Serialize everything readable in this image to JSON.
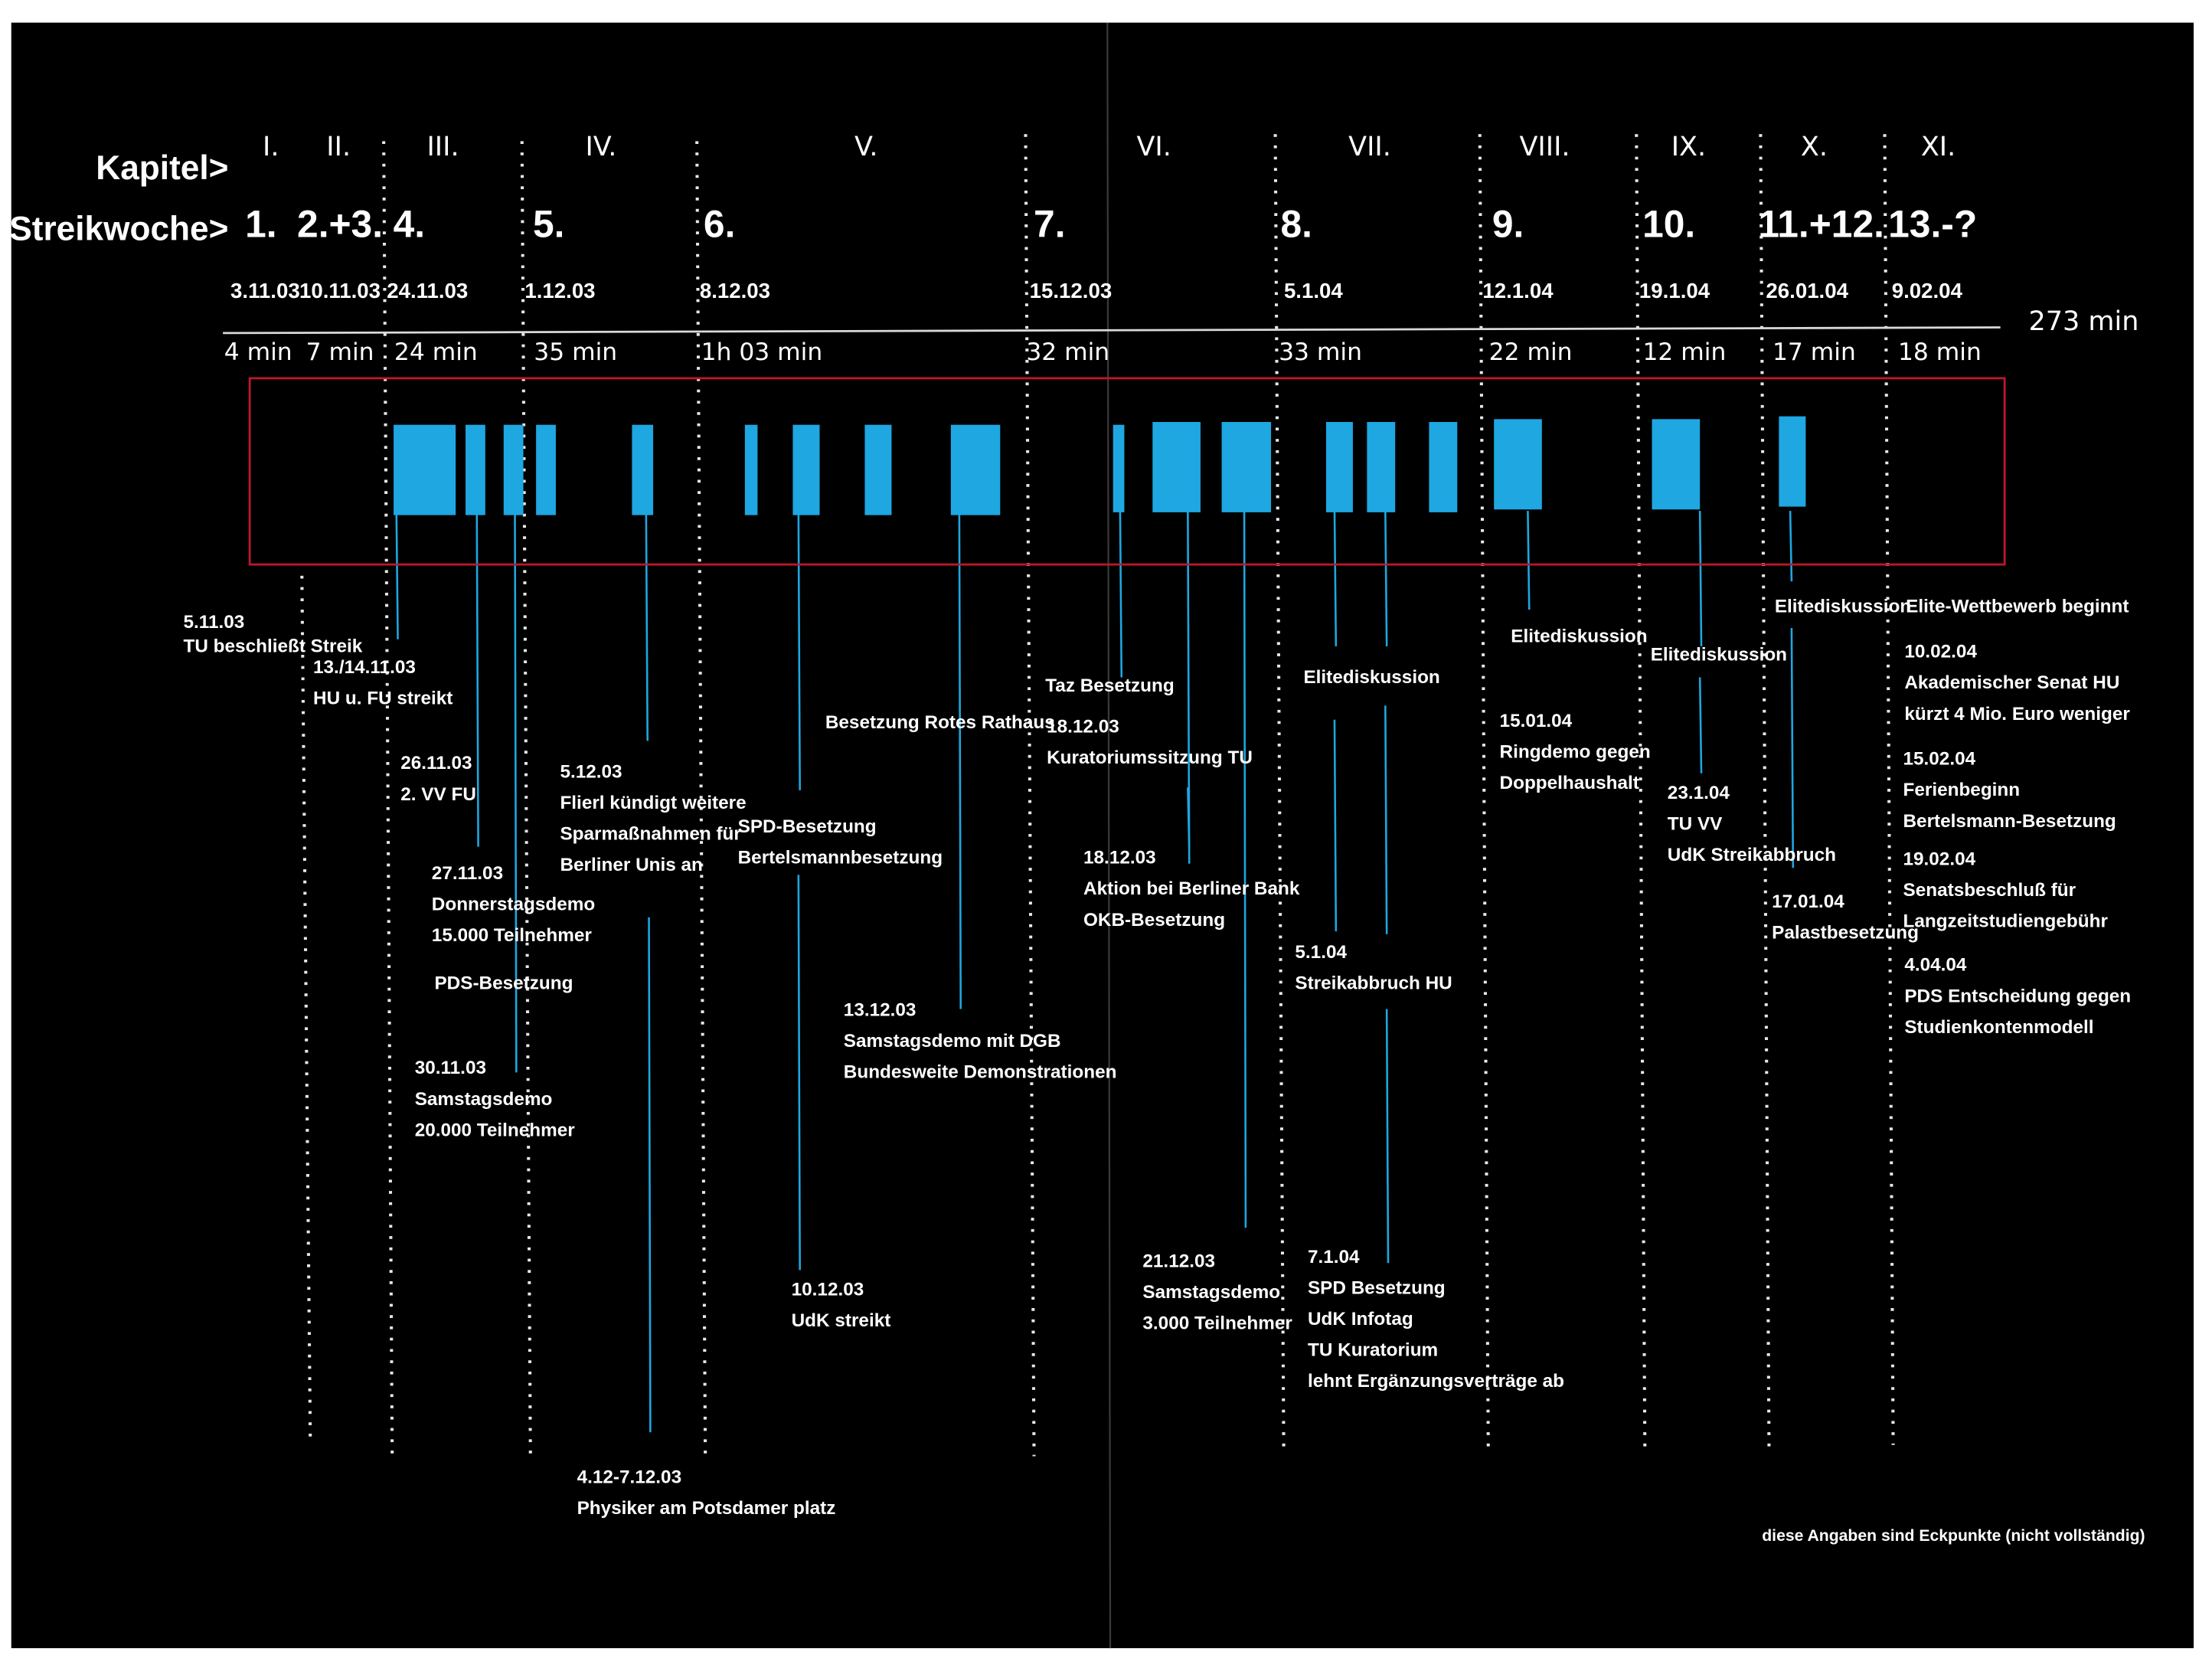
{
  "header": {
    "kapitel_label": "Kapitel>",
    "woche_label": "Streikwoche>",
    "total_duration": "273 min",
    "footnote": "diese Angaben sind Eckpunkte (nicht vollständig)"
  },
  "columns": [
    {
      "chapter": "I.",
      "week": "1.",
      "date": "3.11.03",
      "duration": "4 min"
    },
    {
      "chapter": "II.",
      "week": "2.+3.",
      "date": "10.11.03",
      "duration": "7 min"
    },
    {
      "chapter": "III.",
      "week": "4.",
      "date": "24.11.03",
      "duration": "24 min"
    },
    {
      "chapter": "IV.",
      "week": "5.",
      "date": "1.12.03",
      "duration": "35 min"
    },
    {
      "chapter": "V.",
      "week": "6.",
      "date": "8.12.03",
      "duration": "1h 03 min"
    },
    {
      "chapter": "VI.",
      "week": "7.",
      "date": "15.12.03",
      "duration": "32 min"
    },
    {
      "chapter": "VII.",
      "week": "8.",
      "date": "5.1.04",
      "duration": "33 min"
    },
    {
      "chapter": "VIII.",
      "week": "9.",
      "date": "12.1.04",
      "duration": "22 min"
    },
    {
      "chapter": "IX.",
      "week": "10.",
      "date": "19.1.04",
      "duration": "12 min"
    },
    {
      "chapter": "X.",
      "week": "11.+12.",
      "date": "26.01.04",
      "duration": "17 min"
    },
    {
      "chapter": "XI.",
      "week": "13.-?",
      "date": "9.02.04",
      "duration": "18 min"
    }
  ],
  "events": [
    {
      "lines": [
        "5.11.03",
        "TU beschließt Streik"
      ]
    },
    {
      "lines": [
        "13./14.11.03",
        "HU u. FU streikt"
      ]
    },
    {
      "lines": [
        "26.11.03",
        "2. VV FU"
      ]
    },
    {
      "lines": [
        "27.11.03",
        "Donnerstagsdemo",
        "15.000 Teilnehmer"
      ]
    },
    {
      "lines": [
        "PDS-Besetzung"
      ]
    },
    {
      "lines": [
        "30.11.03",
        "Samstagsdemo",
        "20.000 Teilnehmer"
      ]
    },
    {
      "lines": [
        "5.12.03",
        "Flierl kündigt weitere",
        "Sparmaßnahmen für",
        "Berliner Unis an"
      ]
    },
    {
      "lines": [
        "4.12-7.12.03",
        "Physiker am Potsdamer platz"
      ]
    },
    {
      "lines": [
        "Besetzung Rotes Rathaus"
      ]
    },
    {
      "lines": [
        "SPD-Besetzung",
        "Bertelsmannbesetzung"
      ]
    },
    {
      "lines": [
        "10.12.03",
        "UdK streikt"
      ]
    },
    {
      "lines": [
        "13.12.03",
        "Samstagsdemo mit DGB",
        "Bundesweite Demonstrationen"
      ]
    },
    {
      "lines": [
        "Taz Besetzung"
      ]
    },
    {
      "lines": [
        "18.12.03",
        "Kuratoriumssitzung TU"
      ]
    },
    {
      "lines": [
        "18.12.03",
        "Aktion bei Berliner Bank",
        "OKB-Besetzung"
      ]
    },
    {
      "lines": [
        "21.12.03",
        "Samstagsdemo",
        "3.000 Teilnehmer"
      ]
    },
    {
      "lines": [
        "Elitediskussion"
      ]
    },
    {
      "lines": [
        "5.1.04",
        "Streikabbruch HU"
      ]
    },
    {
      "lines": [
        "7.1.04",
        "SPD Besetzung",
        "UdK Infotag",
        "TU Kuratorium",
        "lehnt Ergänzungsverträge ab"
      ]
    },
    {
      "lines": [
        "Elitediskussion"
      ]
    },
    {
      "lines": [
        "15.01.04",
        "Ringdemo gegen",
        "Doppelhaushalt"
      ]
    },
    {
      "lines": [
        "Elitediskussion"
      ]
    },
    {
      "lines": [
        "23.1.04",
        "TU VV",
        "UdK Streikabbruch"
      ]
    },
    {
      "lines": [
        "Elitediskussion"
      ]
    },
    {
      "lines": [
        "17.01.04",
        "Palastbesetzung"
      ]
    },
    {
      "lines": [
        "Elite-Wettbewerb beginnt"
      ]
    },
    {
      "lines": [
        "10.02.04",
        "Akademischer Senat HU",
        "kürzt 4 Mio. Euro weniger"
      ]
    },
    {
      "lines": [
        "15.02.04",
        "Ferienbeginn",
        "Bertelsmann-Besetzung"
      ]
    },
    {
      "lines": [
        "19.02.04",
        "Senatsbeschluß für",
        "Langzeitstudiengebühr"
      ]
    },
    {
      "lines": [
        "4.04.04",
        "PDS Entscheidung gegen",
        "Studienkontenmodell"
      ]
    }
  ],
  "colors": {
    "background": "#000000",
    "paper": "#ffffff",
    "block": "#1ea7e1",
    "frame": "#c0182a",
    "text": "#ffffff"
  }
}
